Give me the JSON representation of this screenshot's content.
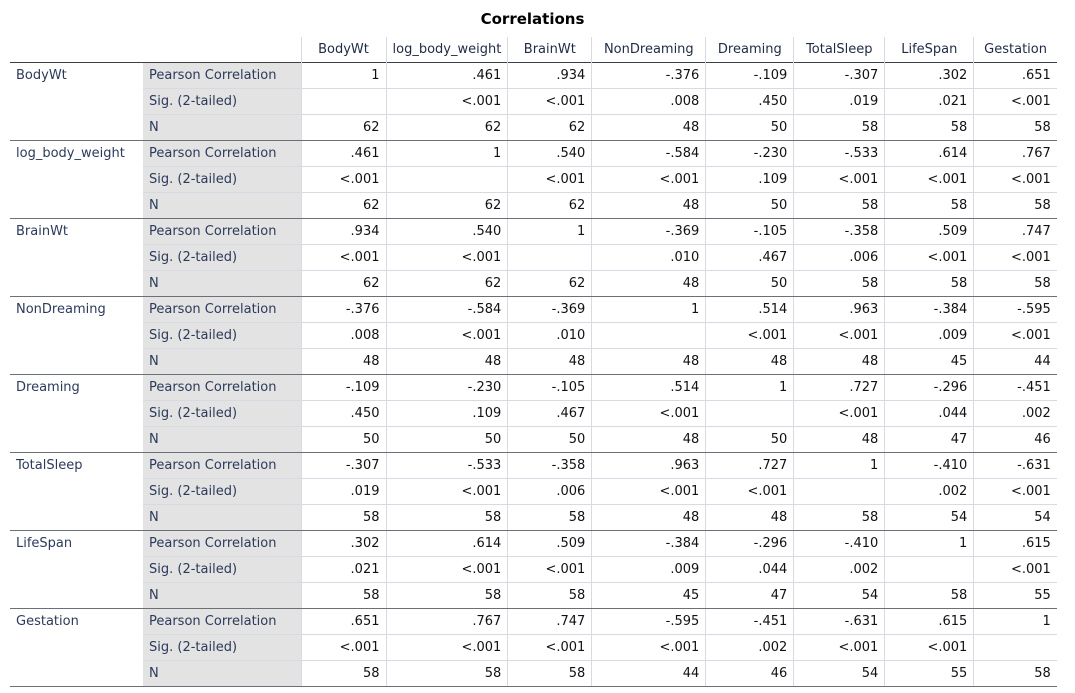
{
  "title": "Correlations",
  "columns": [
    "BodyWt",
    "log_body_weight",
    "BrainWt",
    "NonDreaming",
    "Dreaming",
    "TotalSleep",
    "LifeSpan",
    "Gestation"
  ],
  "stat_labels": [
    "Pearson Correlation",
    "Sig. (2-tailed)",
    "N"
  ],
  "rows": [
    {
      "variable": "BodyWt",
      "pearson": [
        "1",
        ".461",
        ".934",
        "-.376",
        "-.109",
        "-.307",
        ".302",
        ".651"
      ],
      "sig": [
        "",
        "<.001",
        "<.001",
        ".008",
        ".450",
        ".019",
        ".021",
        "<.001"
      ],
      "n": [
        "62",
        "62",
        "62",
        "48",
        "50",
        "58",
        "58",
        "58"
      ]
    },
    {
      "variable": "log_body_weight",
      "pearson": [
        ".461",
        "1",
        ".540",
        "-.584",
        "-.230",
        "-.533",
        ".614",
        ".767"
      ],
      "sig": [
        "<.001",
        "",
        "<.001",
        "<.001",
        ".109",
        "<.001",
        "<.001",
        "<.001"
      ],
      "n": [
        "62",
        "62",
        "62",
        "48",
        "50",
        "58",
        "58",
        "58"
      ]
    },
    {
      "variable": "BrainWt",
      "pearson": [
        ".934",
        ".540",
        "1",
        "-.369",
        "-.105",
        "-.358",
        ".509",
        ".747"
      ],
      "sig": [
        "<.001",
        "<.001",
        "",
        ".010",
        ".467",
        ".006",
        "<.001",
        "<.001"
      ],
      "n": [
        "62",
        "62",
        "62",
        "48",
        "50",
        "58",
        "58",
        "58"
      ]
    },
    {
      "variable": "NonDreaming",
      "pearson": [
        "-.376",
        "-.584",
        "-.369",
        "1",
        ".514",
        ".963",
        "-.384",
        "-.595"
      ],
      "sig": [
        ".008",
        "<.001",
        ".010",
        "",
        "<.001",
        "<.001",
        ".009",
        "<.001"
      ],
      "n": [
        "48",
        "48",
        "48",
        "48",
        "48",
        "48",
        "45",
        "44"
      ]
    },
    {
      "variable": "Dreaming",
      "pearson": [
        "-.109",
        "-.230",
        "-.105",
        ".514",
        "1",
        ".727",
        "-.296",
        "-.451"
      ],
      "sig": [
        ".450",
        ".109",
        ".467",
        "<.001",
        "",
        "<.001",
        ".044",
        ".002"
      ],
      "n": [
        "50",
        "50",
        "50",
        "48",
        "50",
        "48",
        "47",
        "46"
      ]
    },
    {
      "variable": "TotalSleep",
      "pearson": [
        "-.307",
        "-.533",
        "-.358",
        ".963",
        ".727",
        "1",
        "-.410",
        "-.631"
      ],
      "sig": [
        ".019",
        "<.001",
        ".006",
        "<.001",
        "<.001",
        "",
        ".002",
        "<.001"
      ],
      "n": [
        "58",
        "58",
        "58",
        "48",
        "48",
        "58",
        "54",
        "54"
      ]
    },
    {
      "variable": "LifeSpan",
      "pearson": [
        ".302",
        ".614",
        ".509",
        "-.384",
        "-.296",
        "-.410",
        "1",
        ".615"
      ],
      "sig": [
        ".021",
        "<.001",
        "<.001",
        ".009",
        ".044",
        ".002",
        "",
        "<.001"
      ],
      "n": [
        "58",
        "58",
        "58",
        "45",
        "47",
        "54",
        "58",
        "55"
      ]
    },
    {
      "variable": "Gestation",
      "pearson": [
        ".651",
        ".767",
        ".747",
        "-.595",
        "-.451",
        "-.631",
        ".615",
        "1"
      ],
      "sig": [
        "<.001",
        "<.001",
        "<.001",
        "<.001",
        ".002",
        "<.001",
        "<.001",
        ""
      ],
      "n": [
        "58",
        "58",
        "58",
        "44",
        "46",
        "54",
        "55",
        "58"
      ]
    }
  ]
}
